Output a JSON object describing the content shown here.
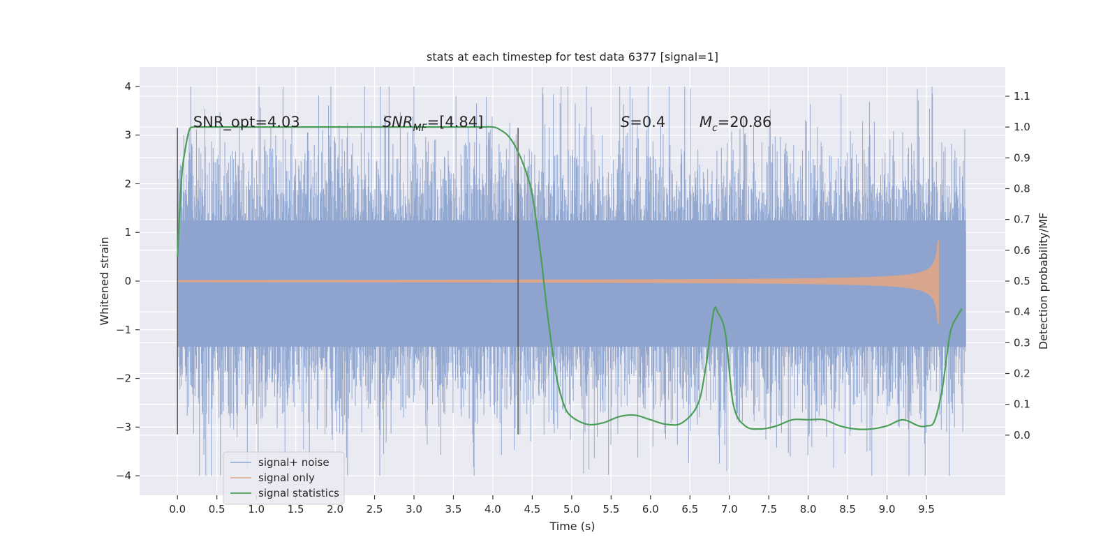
{
  "chart_data": {
    "type": "line",
    "title": "stats at each timestep for test data 6377 [signal=1]",
    "xlabel": "Time (s)",
    "ylabel": "Whitened strain",
    "y2label": "Detection probability/MF",
    "xlim": [
      -0.48,
      10.5
    ],
    "ylim": [
      -4.4,
      4.4
    ],
    "y2lim": [
      -0.195,
      1.195
    ],
    "xticks": [
      0.0,
      0.5,
      1.0,
      1.5,
      2.0,
      2.5,
      3.0,
      3.5,
      4.0,
      4.5,
      5.0,
      5.5,
      6.0,
      6.5,
      7.0,
      7.5,
      8.0,
      8.5,
      9.0,
      9.5
    ],
    "xtick_labels": [
      "0.0",
      "0.5",
      "1.0",
      "1.5",
      "2.0",
      "2.5",
      "3.0",
      "3.5",
      "4.0",
      "4.5",
      "5.0",
      "5.5",
      "6.0",
      "6.5",
      "7.0",
      "7.5",
      "8.0",
      "8.5",
      "9.0",
      "9.5"
    ],
    "yticks": [
      -4,
      -3,
      -2,
      -1,
      0,
      1,
      2,
      3,
      4
    ],
    "ytick_labels": [
      "−4",
      "−3",
      "−2",
      "−1",
      "0",
      "1",
      "2",
      "3",
      "4"
    ],
    "y2ticks": [
      0.0,
      0.1,
      0.2,
      0.3,
      0.4,
      0.5,
      0.6,
      0.7,
      0.8,
      0.9,
      1.0,
      1.1
    ],
    "y2tick_labels": [
      "0.0",
      "0.1",
      "0.2",
      "0.3",
      "0.4",
      "0.5",
      "0.6",
      "0.7",
      "0.8",
      "0.9",
      "1.0",
      "1.1"
    ],
    "grid": true,
    "legend_position": "lower-left",
    "background": "#eaeaf2",
    "vertical_markers": [
      {
        "x": 0.0,
        "ymin": -3.15,
        "ymax": 3.15
      },
      {
        "x": 4.32,
        "ymin": -3.15,
        "ymax": 3.15
      }
    ],
    "annotations": [
      {
        "text": "SNR_opt=4.03",
        "x": 0.2,
        "y2": 1.0
      },
      {
        "text_main": "SNR",
        "text_sub": "MF",
        "text_rest": "=[4.84]",
        "x": 2.6,
        "y2": 1.0
      },
      {
        "text_main": "S",
        "text_rest": "=0.4",
        "x": 5.62,
        "y2": 1.0
      },
      {
        "text_main": "M",
        "text_sub": "c",
        "text_rest": "=20.86",
        "x": 6.62,
        "y2": 1.0
      }
    ],
    "series": [
      {
        "name": "signal+ noise",
        "axis": "left",
        "color": "#8ea4cd",
        "x_range": [
          0.0,
          10.0
        ],
        "typical_extent": [
          -2.3,
          2.4
        ],
        "peak_extent": [
          -4.0,
          4.0
        ]
      },
      {
        "name": "signal only",
        "axis": "left",
        "color": "#e0a586",
        "x_range": [
          0.0,
          9.66
        ],
        "peak_amplitude": 0.85,
        "merger_time": 9.66
      },
      {
        "name": "signal statistics",
        "axis": "right",
        "color": "#4a9e56",
        "x": [
          0.0,
          0.05,
          0.1,
          0.15,
          0.2,
          0.3,
          1.0,
          2.0,
          3.0,
          3.8,
          4.0,
          4.1,
          4.2,
          4.3,
          4.4,
          4.5,
          4.6,
          4.7,
          4.8,
          4.9,
          5.0,
          5.2,
          5.4,
          5.6,
          5.8,
          6.0,
          6.2,
          6.4,
          6.6,
          6.7,
          6.8,
          6.85,
          6.95,
          7.05,
          7.2,
          7.4,
          7.6,
          7.8,
          8.0,
          8.2,
          8.4,
          8.6,
          8.8,
          9.0,
          9.2,
          9.4,
          9.5,
          9.6,
          9.7,
          9.8,
          9.9,
          9.95
        ],
        "values": [
          0.58,
          0.83,
          0.93,
          0.99,
          1.0,
          1.0,
          1.0,
          1.0,
          1.0,
          1.0,
          1.0,
          0.99,
          0.97,
          0.93,
          0.87,
          0.78,
          0.6,
          0.38,
          0.2,
          0.1,
          0.06,
          0.035,
          0.04,
          0.06,
          0.065,
          0.05,
          0.035,
          0.04,
          0.1,
          0.22,
          0.4,
          0.4,
          0.33,
          0.1,
          0.03,
          0.02,
          0.03,
          0.05,
          0.05,
          0.05,
          0.03,
          0.02,
          0.02,
          0.03,
          0.05,
          0.03,
          0.03,
          0.045,
          0.15,
          0.33,
          0.39,
          0.41
        ]
      }
    ]
  }
}
